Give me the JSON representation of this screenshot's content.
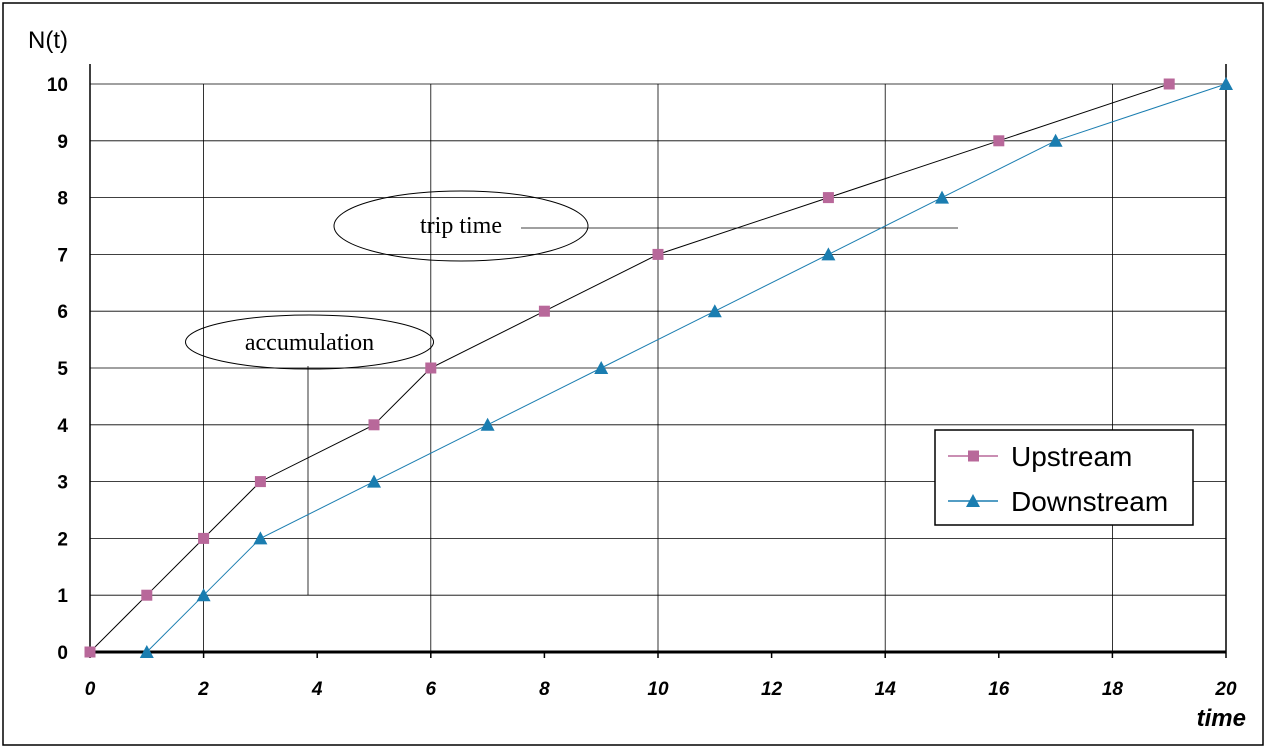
{
  "chart_data": {
    "type": "line",
    "xlabel": "time",
    "ylabel": "N(t)",
    "xlim": [
      0,
      20
    ],
    "ylim": [
      0,
      10
    ],
    "x_ticks": [
      "0",
      "2",
      "4",
      "6",
      "8",
      "10",
      "12",
      "14",
      "16",
      "18",
      "20"
    ],
    "y_ticks": [
      "0",
      "1",
      "2",
      "3",
      "4",
      "5",
      "6",
      "7",
      "8",
      "9",
      "10"
    ],
    "grid": true,
    "legend_position": "right",
    "series": [
      {
        "name": "Upstream",
        "color": "#b8689a",
        "marker": "square",
        "x": [
          0,
          1,
          2,
          3,
          5,
          6,
          8,
          10,
          13,
          16,
          19
        ],
        "y": [
          0,
          1,
          2,
          3,
          4,
          5,
          6,
          7,
          8,
          9,
          10
        ]
      },
      {
        "name": "Downstream",
        "color": "#1a7db0",
        "marker": "triangle",
        "x": [
          1,
          2,
          3,
          5,
          7,
          9,
          11,
          13,
          15,
          17,
          20
        ],
        "y": [
          0,
          1,
          2,
          3,
          4,
          5,
          6,
          7,
          8,
          9,
          10
        ]
      }
    ],
    "annotations": [
      {
        "text": "trip time",
        "x": 7.5,
        "y": 7.5
      },
      {
        "text": "accumulation",
        "x": 3.9,
        "y": 5.5
      }
    ]
  }
}
